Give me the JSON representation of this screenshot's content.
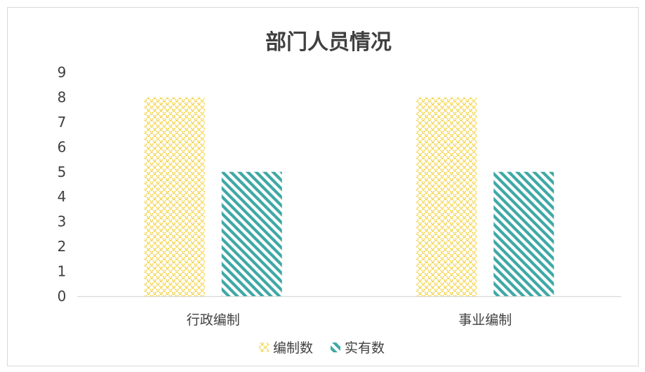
{
  "chart_data": {
    "type": "bar",
    "title": "部门人员情况",
    "categories": [
      "行政编制",
      "事业编制"
    ],
    "series": [
      {
        "name": "编制数",
        "values": [
          8,
          8
        ],
        "color": "#f2d03b",
        "pattern": "crosshatch"
      },
      {
        "name": "实有数",
        "values": [
          5,
          5
        ],
        "color": "#3fa8a6",
        "pattern": "diagonal-stripes"
      }
    ],
    "ylim": [
      0,
      9
    ],
    "yticks": [
      0,
      1,
      2,
      3,
      4,
      5,
      6,
      7,
      8,
      9
    ],
    "grid": false,
    "legend": "bottom"
  }
}
